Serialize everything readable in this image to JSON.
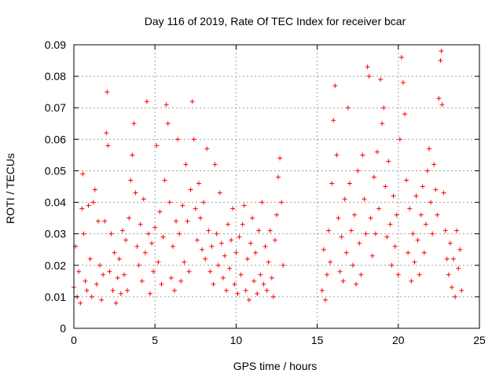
{
  "chart_data": {
    "type": "scatter",
    "title": "Day 116 of 2019, Rate Of TEC Index for receiver bcar",
    "xlabel": "GPS time / hours",
    "ylabel": "ROTI / TECUs",
    "xlim": [
      0,
      25
    ],
    "ylim": [
      0,
      0.09
    ],
    "xticks": [
      0,
      5,
      10,
      15,
      20,
      25
    ],
    "yticks": [
      0,
      0.01,
      0.02,
      0.03,
      0.04,
      0.05,
      0.06,
      0.07,
      0.08,
      0.09
    ],
    "ytick_labels": [
      "0",
      "0.01",
      "0.02",
      "0.03",
      "0.04",
      "0.05",
      "0.06",
      "0.07",
      "0.08",
      "0.09"
    ],
    "grid": true,
    "marker": "+",
    "color": "#ff0000",
    "data_gap_hours": [
      13.0,
      15.2
    ],
    "series": [
      {
        "points": [
          [
            0.0,
            0.013
          ],
          [
            0.1,
            0.026
          ],
          [
            0.2,
            0.01
          ],
          [
            0.3,
            0.018
          ],
          [
            0.4,
            0.008
          ],
          [
            0.5,
            0.038
          ],
          [
            0.55,
            0.049
          ],
          [
            0.6,
            0.03
          ],
          [
            0.7,
            0.015
          ],
          [
            0.8,
            0.012
          ],
          [
            0.9,
            0.039
          ],
          [
            1.0,
            0.022
          ],
          [
            1.1,
            0.01
          ],
          [
            1.2,
            0.04
          ],
          [
            1.3,
            0.044
          ],
          [
            1.4,
            0.014
          ],
          [
            1.5,
            0.034
          ],
          [
            1.6,
            0.02
          ],
          [
            1.7,
            0.009
          ],
          [
            1.8,
            0.017
          ],
          [
            1.9,
            0.034
          ],
          [
            2.0,
            0.062
          ],
          [
            2.05,
            0.075
          ],
          [
            2.1,
            0.058
          ],
          [
            2.2,
            0.018
          ],
          [
            2.3,
            0.03
          ],
          [
            2.4,
            0.012
          ],
          [
            2.5,
            0.024
          ],
          [
            2.6,
            0.008
          ],
          [
            2.7,
            0.016
          ],
          [
            2.8,
            0.022
          ],
          [
            2.9,
            0.011
          ],
          [
            3.0,
            0.031
          ],
          [
            3.1,
            0.017
          ],
          [
            3.2,
            0.028
          ],
          [
            3.3,
            0.012
          ],
          [
            3.4,
            0.035
          ],
          [
            3.5,
            0.047
          ],
          [
            3.6,
            0.055
          ],
          [
            3.7,
            0.065
          ],
          [
            3.8,
            0.043
          ],
          [
            3.9,
            0.026
          ],
          [
            4.0,
            0.02
          ],
          [
            4.1,
            0.033
          ],
          [
            4.2,
            0.015
          ],
          [
            4.3,
            0.041
          ],
          [
            4.4,
            0.024
          ],
          [
            4.5,
            0.072
          ],
          [
            4.6,
            0.03
          ],
          [
            4.7,
            0.011
          ],
          [
            4.8,
            0.027
          ],
          [
            4.9,
            0.018
          ],
          [
            5.0,
            0.032
          ],
          [
            5.1,
            0.058
          ],
          [
            5.2,
            0.021
          ],
          [
            5.3,
            0.037
          ],
          [
            5.4,
            0.014
          ],
          [
            5.5,
            0.029
          ],
          [
            5.6,
            0.047
          ],
          [
            5.7,
            0.071
          ],
          [
            5.8,
            0.065
          ],
          [
            5.9,
            0.04
          ],
          [
            6.0,
            0.016
          ],
          [
            6.1,
            0.026
          ],
          [
            6.2,
            0.012
          ],
          [
            6.3,
            0.034
          ],
          [
            6.4,
            0.06
          ],
          [
            6.5,
            0.03
          ],
          [
            6.6,
            0.015
          ],
          [
            6.7,
            0.039
          ],
          [
            6.8,
            0.021
          ],
          [
            6.9,
            0.052
          ],
          [
            7.0,
            0.034
          ],
          [
            7.1,
            0.018
          ],
          [
            7.2,
            0.044
          ],
          [
            7.3,
            0.072
          ],
          [
            7.4,
            0.06
          ],
          [
            7.5,
            0.038
          ],
          [
            7.6,
            0.028
          ],
          [
            7.7,
            0.046
          ],
          [
            7.8,
            0.035
          ],
          [
            7.9,
            0.025
          ],
          [
            8.0,
            0.04
          ],
          [
            8.1,
            0.022
          ],
          [
            8.2,
            0.057
          ],
          [
            8.3,
            0.031
          ],
          [
            8.4,
            0.018
          ],
          [
            8.5,
            0.026
          ],
          [
            8.6,
            0.014
          ],
          [
            8.7,
            0.052
          ],
          [
            8.8,
            0.03
          ],
          [
            8.9,
            0.02
          ],
          [
            9.0,
            0.043
          ],
          [
            9.1,
            0.027
          ],
          [
            9.2,
            0.016
          ],
          [
            9.3,
            0.023
          ],
          [
            9.4,
            0.012
          ],
          [
            9.5,
            0.033
          ],
          [
            9.6,
            0.019
          ],
          [
            9.7,
            0.028
          ],
          [
            9.8,
            0.038
          ],
          [
            9.9,
            0.014
          ],
          [
            10.0,
            0.024
          ],
          [
            10.1,
            0.011
          ],
          [
            10.2,
            0.029
          ],
          [
            10.3,
            0.017
          ],
          [
            10.4,
            0.033
          ],
          [
            10.5,
            0.039
          ],
          [
            10.6,
            0.012
          ],
          [
            10.7,
            0.022
          ],
          [
            10.8,
            0.009
          ],
          [
            10.9,
            0.027
          ],
          [
            11.0,
            0.035
          ],
          [
            11.1,
            0.015
          ],
          [
            11.2,
            0.024
          ],
          [
            11.3,
            0.011
          ],
          [
            11.4,
            0.031
          ],
          [
            11.5,
            0.017
          ],
          [
            11.6,
            0.04
          ],
          [
            11.7,
            0.014
          ],
          [
            11.8,
            0.026
          ],
          [
            11.9,
            0.012
          ],
          [
            12.0,
            0.021
          ],
          [
            12.1,
            0.031
          ],
          [
            12.2,
            0.016
          ],
          [
            12.3,
            0.01
          ],
          [
            12.4,
            0.028
          ],
          [
            12.5,
            0.036
          ],
          [
            12.6,
            0.048
          ],
          [
            12.7,
            0.054
          ],
          [
            12.8,
            0.04
          ],
          [
            12.9,
            0.02
          ],
          [
            15.3,
            0.012
          ],
          [
            15.4,
            0.025
          ],
          [
            15.5,
            0.009
          ],
          [
            15.6,
            0.017
          ],
          [
            15.7,
            0.031
          ],
          [
            15.8,
            0.021
          ],
          [
            15.9,
            0.046
          ],
          [
            16.0,
            0.066
          ],
          [
            16.1,
            0.077
          ],
          [
            16.2,
            0.055
          ],
          [
            16.3,
            0.035
          ],
          [
            16.4,
            0.018
          ],
          [
            16.5,
            0.029
          ],
          [
            16.6,
            0.015
          ],
          [
            16.7,
            0.041
          ],
          [
            16.8,
            0.024
          ],
          [
            16.9,
            0.07
          ],
          [
            17.0,
            0.046
          ],
          [
            17.1,
            0.031
          ],
          [
            17.2,
            0.02
          ],
          [
            17.3,
            0.036
          ],
          [
            17.4,
            0.014
          ],
          [
            17.5,
            0.05
          ],
          [
            17.6,
            0.027
          ],
          [
            17.7,
            0.017
          ],
          [
            17.8,
            0.055
          ],
          [
            17.9,
            0.041
          ],
          [
            18.0,
            0.03
          ],
          [
            18.1,
            0.083
          ],
          [
            18.2,
            0.08
          ],
          [
            18.3,
            0.035
          ],
          [
            18.4,
            0.023
          ],
          [
            18.5,
            0.048
          ],
          [
            18.6,
            0.03
          ],
          [
            18.7,
            0.056
          ],
          [
            18.8,
            0.038
          ],
          [
            18.9,
            0.079
          ],
          [
            19.0,
            0.065
          ],
          [
            19.1,
            0.07
          ],
          [
            19.2,
            0.045
          ],
          [
            19.3,
            0.029
          ],
          [
            19.4,
            0.053
          ],
          [
            19.5,
            0.033
          ],
          [
            19.6,
            0.02
          ],
          [
            19.7,
            0.042
          ],
          [
            19.8,
            0.026
          ],
          [
            19.9,
            0.036
          ],
          [
            20.0,
            0.017
          ],
          [
            20.1,
            0.06
          ],
          [
            20.2,
            0.086
          ],
          [
            20.3,
            0.078
          ],
          [
            20.4,
            0.068
          ],
          [
            20.5,
            0.047
          ],
          [
            20.6,
            0.024
          ],
          [
            20.7,
            0.038
          ],
          [
            20.8,
            0.015
          ],
          [
            20.9,
            0.03
          ],
          [
            21.0,
            0.021
          ],
          [
            21.1,
            0.042
          ],
          [
            21.2,
            0.028
          ],
          [
            21.3,
            0.017
          ],
          [
            21.4,
            0.036
          ],
          [
            21.5,
            0.045
          ],
          [
            21.6,
            0.024
          ],
          [
            21.7,
            0.033
          ],
          [
            21.8,
            0.05
          ],
          [
            21.9,
            0.057
          ],
          [
            22.0,
            0.04
          ],
          [
            22.1,
            0.03
          ],
          [
            22.2,
            0.052
          ],
          [
            22.3,
            0.044
          ],
          [
            22.4,
            0.036
          ],
          [
            22.5,
            0.073
          ],
          [
            22.6,
            0.085
          ],
          [
            22.65,
            0.088
          ],
          [
            22.7,
            0.071
          ],
          [
            22.8,
            0.043
          ],
          [
            22.9,
            0.031
          ],
          [
            23.0,
            0.022
          ],
          [
            23.1,
            0.017
          ],
          [
            23.2,
            0.027
          ],
          [
            23.3,
            0.013
          ],
          [
            23.4,
            0.022
          ],
          [
            23.5,
            0.01
          ],
          [
            23.6,
            0.031
          ],
          [
            23.7,
            0.019
          ],
          [
            23.8,
            0.025
          ],
          [
            23.9,
            0.012
          ]
        ]
      }
    ]
  }
}
